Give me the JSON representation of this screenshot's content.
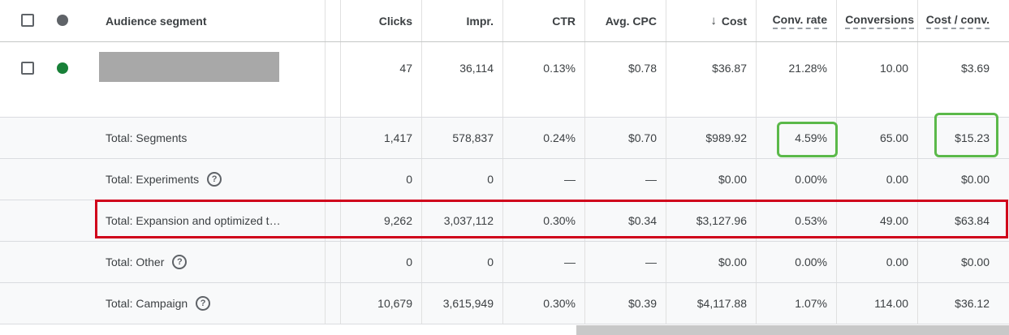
{
  "header": {
    "segment": "Audience segment",
    "clicks": "Clicks",
    "impr": "Impr.",
    "ctr": "CTR",
    "avg_cpc": "Avg. CPC",
    "cost_arrow": "↓",
    "cost": "Cost",
    "conv_rate": "Conv. rate",
    "conversions": "Conversions",
    "cost_per_conv": "Cost / conv."
  },
  "data_row": {
    "clicks": "47",
    "impr": "36,114",
    "ctr": "0.13%",
    "avg_cpc": "$0.78",
    "cost": "$36.87",
    "conv_rate": "21.28%",
    "conversions": "10.00",
    "cost_per_conv": "$3.69",
    "status_color": "#188038"
  },
  "totals": [
    {
      "label": "Total: Segments",
      "help": false,
      "clicks": "1,417",
      "impr": "578,837",
      "ctr": "0.24%",
      "avg_cpc": "$0.70",
      "cost": "$989.92",
      "conv_rate": "4.59%",
      "conversions": "65.00",
      "cost_per_conv": "$15.23"
    },
    {
      "label": "Total: Experiments",
      "help": true,
      "clicks": "0",
      "impr": "0",
      "ctr": "—",
      "avg_cpc": "—",
      "cost": "$0.00",
      "conv_rate": "0.00%",
      "conversions": "0.00",
      "cost_per_conv": "$0.00"
    },
    {
      "label": "Total: Expansion and optimized t…",
      "help": false,
      "clicks": "9,262",
      "impr": "3,037,112",
      "ctr": "0.30%",
      "avg_cpc": "$0.34",
      "cost": "$3,127.96",
      "conv_rate": "0.53%",
      "conversions": "49.00",
      "cost_per_conv": "$63.84"
    },
    {
      "label": "Total: Other",
      "help": true,
      "clicks": "0",
      "impr": "0",
      "ctr": "—",
      "avg_cpc": "—",
      "cost": "$0.00",
      "conv_rate": "0.00%",
      "conversions": "0.00",
      "cost_per_conv": "$0.00"
    },
    {
      "label": "Total: Campaign",
      "help": true,
      "clicks": "10,679",
      "impr": "3,615,949",
      "ctr": "0.30%",
      "avg_cpc": "$0.39",
      "cost": "$4,117.88",
      "conv_rate": "1.07%",
      "conversions": "114.00",
      "cost_per_conv": "$36.12"
    }
  ],
  "help_glyph": "?",
  "highlight_colors": {
    "red": "#d0021b",
    "green": "#5bb94a"
  }
}
